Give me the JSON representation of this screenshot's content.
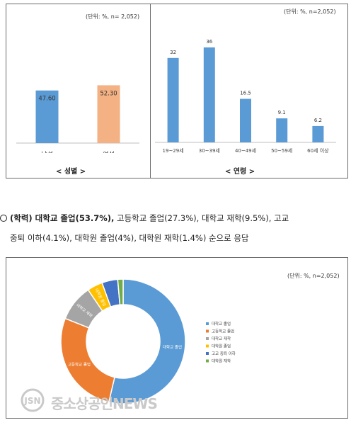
{
  "charts_top": {
    "gender": {
      "unit_note": "(단위: %,  n= 2,052)",
      "caption": "< 성별 >"
    },
    "age": {
      "unit_note": "(단위: %,  n=2,052)",
      "caption": "< 연령 >"
    }
  },
  "education_text": {
    "line1_bold": "(학력) 대학교 졸업(53.7%),",
    "line1_rest": " 고등학교 졸업(27.3%), 대학교 재학(9.5%), 고교",
    "line2": "중퇴 이하(4.1%), 대학원 졸업(4%), 대학원 재학(1.4%) 순으로 응답"
  },
  "chart_bottom": {
    "unit_note": "(단위: %,  n=2,052)"
  },
  "watermark": {
    "logo_text": "JSN",
    "text": "중소상공인NEWS"
  },
  "chart_data": [
    {
      "type": "bar",
      "categories": [
        "남성",
        "여성"
      ],
      "values": [
        47.6,
        52.3
      ],
      "value_labels": [
        "47.60",
        "52.30"
      ],
      "colors": [
        "#5b9bd5",
        "#f4b183"
      ],
      "ylim": [
        0,
        100
      ],
      "caption": "< 성별 >",
      "unit_note": "(단위: %,  n= 2,052)"
    },
    {
      "type": "bar",
      "categories": [
        "19~29세",
        "30~39세",
        "40~49세",
        "50~59세",
        "60세 이상"
      ],
      "values": [
        32,
        36,
        16.5,
        9.1,
        6.2
      ],
      "value_labels": [
        "32",
        "36",
        "16.5",
        "9.1",
        "6.2"
      ],
      "colors": [
        "#5b9bd5",
        "#5b9bd5",
        "#5b9bd5",
        "#5b9bd5",
        "#5b9bd5"
      ],
      "ylim": [
        0,
        40
      ],
      "caption": "< 연령 >",
      "unit_note": "(단위: %,  n=2,052)"
    },
    {
      "type": "pie",
      "donut": true,
      "categories": [
        "대학교 졸업",
        "고등학교 졸업",
        "대학교 재학",
        "대학원 졸업",
        "고교 중퇴 이하",
        "대학원 재학"
      ],
      "values": [
        53.7,
        27.3,
        9.5,
        4.0,
        4.1,
        1.4
      ],
      "slice_labels": [
        "대학교 졸업",
        "고등학교 졸업",
        "대학교 재학",
        "대학원 졸업",
        "",
        ""
      ],
      "colors": [
        "#5b9bd5",
        "#ed7d31",
        "#a5a5a5",
        "#ffc000",
        "#4472c4",
        "#70ad47"
      ],
      "legend": [
        "대학교 졸업",
        "고등학교 졸업",
        "대학교 재학",
        "대학원 졸업",
        "고교 중퇴 이하",
        "대학원 재학"
      ],
      "legend_position": "right",
      "unit_note": "(단위: %,  n=2,052)"
    }
  ]
}
